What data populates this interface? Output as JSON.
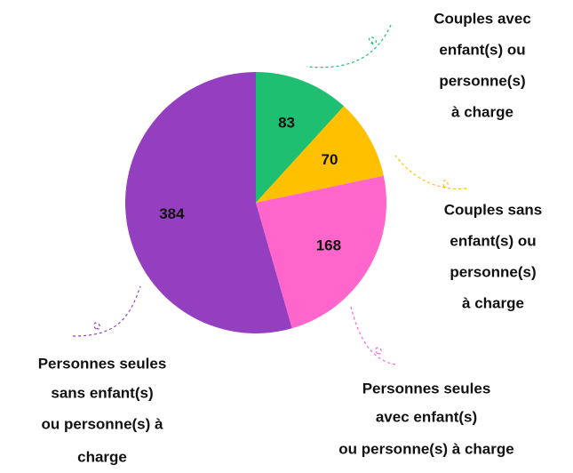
{
  "chart_data": {
    "type": "pie",
    "categories": [
      [
        "Couples avec",
        "enfant(s)  ou",
        "personne(s)",
        "à charge"
      ],
      [
        "Couples sans",
        "enfant(s)  ou",
        "personne(s)",
        "à charge"
      ],
      [
        "Personnes seules",
        "avec enfant(s)",
        "ou personne(s) à charge"
      ],
      [
        "Personnes seules",
        "sans enfant(s)",
        "ou personne(s) à",
        "charge"
      ]
    ],
    "values": [
      83,
      70,
      168,
      384
    ],
    "colors": [
      "#1fbf72",
      "#ffc000",
      "#ff66cc",
      "#943fbf"
    ]
  }
}
